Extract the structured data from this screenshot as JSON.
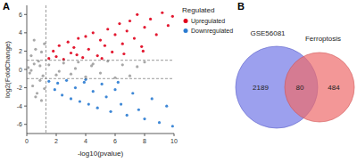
{
  "chart_data": [
    {
      "type": "scatter",
      "label": "A",
      "x_label": "-log10(pvalue)",
      "y_label": "log2(FoldChange)",
      "xlim": [
        0,
        10
      ],
      "ylim": [
        -7,
        7
      ],
      "xticks": [
        0,
        2,
        4,
        6,
        8,
        10
      ],
      "yticks": [
        -6,
        -4,
        -2,
        0,
        2,
        4,
        6
      ],
      "hlines": [
        -1,
        1
      ],
      "vlines": [
        1.3
      ],
      "legend": "right",
      "legend_title": "Regulated",
      "grid": false,
      "marker": "circle",
      "series": [
        {
          "name": "Upregulated",
          "color": "#e0001b",
          "x": [
            1.5,
            1.8,
            2.0,
            2.2,
            2.5,
            2.8,
            3.0,
            3.2,
            3.5,
            3.8,
            4.0,
            4.2,
            4.5,
            4.8,
            5.0,
            5.3,
            5.5,
            5.8,
            6.0,
            6.3,
            6.5,
            6.8,
            7.0,
            7.3,
            7.5,
            7.8,
            8.0,
            8.4,
            8.8,
            9.2,
            9.6,
            9.9,
            3.4,
            5.1,
            6.6,
            7.9
          ],
          "values": [
            1.2,
            2.0,
            1.4,
            2.6,
            1.1,
            3.0,
            1.8,
            2.4,
            3.4,
            1.3,
            3.6,
            2.2,
            4.0,
            1.5,
            3.2,
            2.6,
            4.4,
            1.9,
            3.8,
            5.0,
            2.8,
            4.2,
            5.3,
            3.4,
            6.0,
            2.5,
            4.6,
            5.5,
            3.8,
            6.2,
            4.8,
            5.8,
            1.6,
            1.2,
            1.7,
            2.0
          ]
        },
        {
          "name": "Downregulated",
          "color": "#2a7bd1",
          "x": [
            1.5,
            1.9,
            2.1,
            2.4,
            2.7,
            3.0,
            3.3,
            3.6,
            3.9,
            4.2,
            4.5,
            4.8,
            5.1,
            5.4,
            5.7,
            6.0,
            6.4,
            6.8,
            7.2,
            7.6,
            8.0,
            8.5,
            9.0,
            9.5,
            9.9,
            4.0,
            6.2
          ],
          "values": [
            -1.3,
            -2.2,
            -1.5,
            -2.8,
            -1.2,
            -3.2,
            -2.0,
            -3.5,
            -1.4,
            -3.8,
            -2.4,
            -4.2,
            -1.6,
            -3.0,
            -4.6,
            -2.2,
            -3.8,
            -5.0,
            -2.6,
            -4.4,
            -5.4,
            -3.2,
            -5.8,
            -4.0,
            -6.2,
            -1.1,
            -1.4
          ]
        },
        {
          "color": "#9e9e9e",
          "x": [
            0.1,
            0.2,
            0.3,
            0.4,
            0.5,
            0.6,
            0.7,
            0.8,
            0.9,
            1.0,
            1.1,
            1.2,
            0.3,
            0.6,
            0.9,
            1.2,
            1.5,
            2.0,
            2.5,
            3.0,
            3.5,
            4.0,
            4.5,
            5.0,
            5.5,
            6.0,
            6.5,
            7.0,
            7.5,
            8.0,
            0.5,
            1.0,
            2.2,
            3.3,
            4.4
          ],
          "values": [
            0.2,
            -0.4,
            1.5,
            -1.8,
            0.6,
            2.2,
            -2.6,
            0.9,
            -1.2,
            1.9,
            -0.7,
            2.8,
            -0.1,
            -3.0,
            0.4,
            -2.1,
            0.5,
            -0.6,
            0.7,
            -0.5,
            0.8,
            -0.8,
            0.6,
            -0.4,
            0.9,
            -0.9,
            0.5,
            -0.7,
            0.3,
            0.8,
            3.2,
            -3.4,
            -0.2,
            0.1,
            0.4
          ]
        }
      ]
    },
    {
      "type": "venn",
      "label": "B",
      "series": [
        {
          "name": "GSE56081",
          "color": "#7b80e8"
        },
        {
          "name": "Ferroptosis",
          "color": "#ee6b6b"
        }
      ],
      "values": [
        2189,
        80,
        484
      ]
    }
  ]
}
